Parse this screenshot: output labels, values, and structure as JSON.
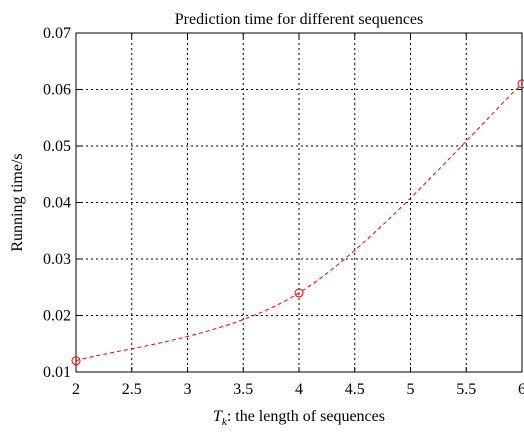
{
  "chart_data": {
    "type": "line",
    "title": "Prediction time for different sequences",
    "xlabel": {
      "symbol": "T",
      "subscript": "k",
      "text": ": the length of sequences"
    },
    "ylabel": "Running time/s",
    "xlim": [
      2,
      6
    ],
    "ylim": [
      0.01,
      0.07
    ],
    "xticks": [
      2,
      2.5,
      3,
      3.5,
      4,
      4.5,
      5,
      5.5,
      6
    ],
    "xtick_labels": [
      "2",
      "2.5",
      "3",
      "3.5",
      "4",
      "4.5",
      "5",
      "5.5",
      "6"
    ],
    "yticks": [
      0.01,
      0.02,
      0.03,
      0.04,
      0.05,
      0.06,
      0.07
    ],
    "ytick_labels": [
      "0.01",
      "0.02",
      "0.03",
      "0.04",
      "0.05",
      "0.06",
      "0.07"
    ],
    "grid": true,
    "series": [
      {
        "x": [
          2,
          4,
          6
        ],
        "values": [
          0.012,
          0.024,
          0.061
        ],
        "color": "#ff0000",
        "line_style": "dashed",
        "marker": "circle",
        "interpolation": "smooth"
      }
    ]
  }
}
